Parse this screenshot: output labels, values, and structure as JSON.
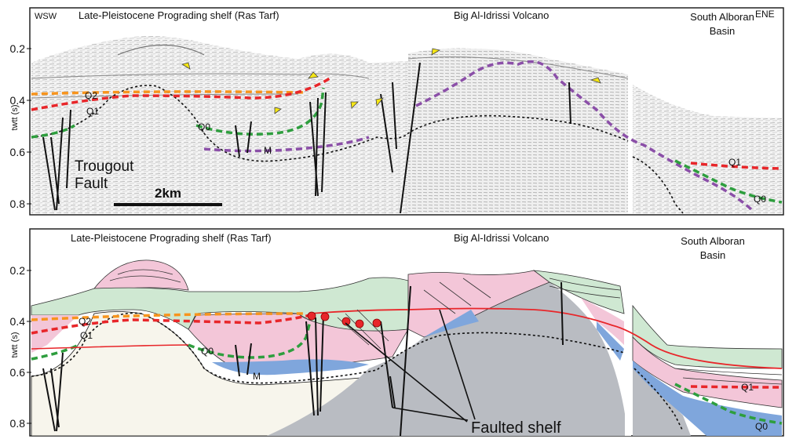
{
  "panel_top": {
    "corner_left": "WSW",
    "title_left": "Late-Pleistocene Prograding shelf (Ras Tarf)",
    "title_center": "Big Al-Idrissi Volcano",
    "title_right_line1": "South Alboran",
    "title_right_line2": "Basin",
    "corner_right": "ENE",
    "y_axis_label": "twtt (s)",
    "y_ticks": [
      "0.2",
      "0.4",
      "0.6",
      "0.8"
    ],
    "horizon_labels": {
      "q2": "Q2",
      "q1": "Q1",
      "q0": "Q0",
      "m": "M",
      "q1_right": "Q1",
      "q0_right": "Q0"
    },
    "fault_label_line1": "Trougout",
    "fault_label_line2": "Fault",
    "scale_bar_label": "2km"
  },
  "panel_bottom": {
    "title_left": "Late-Pleistocene Prograding shelf (Ras Tarf)",
    "title_center": "Big Al-Idrissi Volcano",
    "title_right_line1": "South Alboran",
    "title_right_line2": "Basin",
    "y_axis_label": "twtt (s)",
    "y_ticks": [
      "0.2",
      "0.4",
      "0.6",
      "0.8"
    ],
    "horizon_labels": {
      "q2": "Q2",
      "q1": "Q1",
      "q0": "Q0",
      "m": "M",
      "q1_right": "Q1",
      "q0_right": "Q0"
    },
    "annotation": "Faulted shelf"
  },
  "colors": {
    "q2": "#f7941d",
    "q1": "#e8262a",
    "q0": "#2e9e3e",
    "m": "#8b4fa8",
    "unit_pink": "#f3c6d8",
    "unit_green": "#cfe8d2",
    "unit_blue": "#7fa6dc",
    "volcano_gray": "#b9bcc2",
    "basement_cream": "#f7f5ec"
  }
}
